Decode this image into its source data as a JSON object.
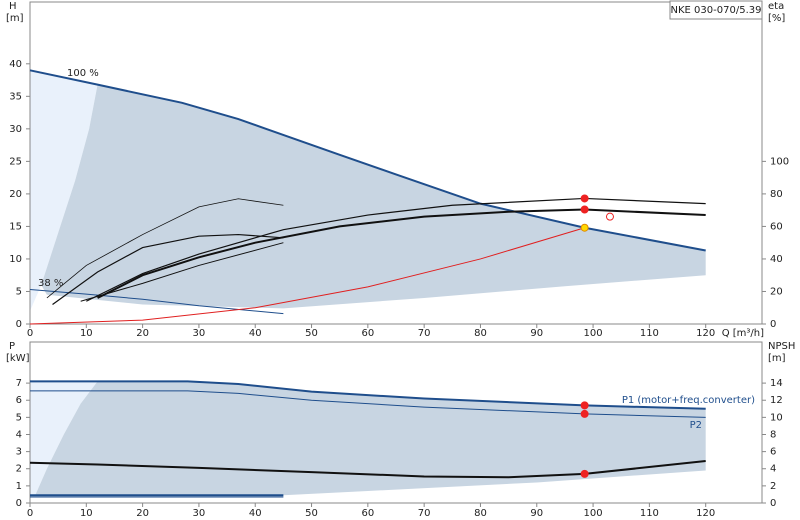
{
  "chart_data": [
    {
      "type": "line",
      "model": "NKE 030-070/5.39",
      "y_label": "H",
      "y_unit": "[m]",
      "y2_label": "eta",
      "y2_unit": "[%]",
      "x_label": "Q [m³/h]",
      "annotations": [
        "100 %",
        "38 %"
      ],
      "xlim": [
        0,
        130
      ],
      "xticks": [
        0,
        10,
        20,
        30,
        40,
        50,
        60,
        70,
        80,
        90,
        100,
        110,
        120
      ],
      "ylim": [
        0,
        49.5
      ],
      "yticks": [
        0,
        5,
        10,
        15,
        20,
        25,
        30,
        35,
        40
      ],
      "y2lim": [
        0,
        198
      ],
      "y2ticks": [
        0,
        20,
        40,
        60,
        80,
        100
      ],
      "grid": false,
      "areas": [
        {
          "color": "#e9f1fb",
          "x": [
            0,
            12,
            10.5,
            8,
            5,
            2,
            0
          ],
          "values": [
            39,
            36.8,
            30,
            22,
            14,
            6,
            2
          ]
        },
        {
          "color": "#c8d5e2",
          "x": [
            12,
            27,
            37,
            55,
            65,
            80,
            98.5,
            120,
            120,
            95,
            70,
            45,
            20,
            3,
            2,
            5,
            8,
            10.5
          ],
          "values": [
            36.8,
            34,
            31.5,
            26,
            23,
            18.5,
            14.8,
            11.3,
            7.5,
            5.8,
            4,
            2.4,
            3,
            4.5,
            6,
            14,
            22,
            30
          ]
        }
      ],
      "series": [
        {
          "color": "#1f4e8c",
          "width": 2,
          "x": [
            0,
            12,
            27,
            37,
            55,
            65,
            80,
            98.5,
            120
          ],
          "values": [
            39,
            36.8,
            34,
            31.5,
            26,
            23,
            18.5,
            14.8,
            11.3
          ]
        },
        {
          "color": "#1f4e8c",
          "width": 1,
          "x": [
            0,
            10,
            20,
            30,
            45
          ],
          "values": [
            5.3,
            4.6,
            3.8,
            2.8,
            1.6
          ]
        },
        {
          "color": "#e02020",
          "width": 1,
          "x": [
            0,
            20,
            40,
            60,
            80,
            98.5
          ],
          "values": [
            0,
            0.6,
            2.5,
            5.7,
            10,
            14.8
          ]
        },
        {
          "color": "#111111",
          "width": 0.8,
          "axis": "y2",
          "x": [
            3,
            10,
            20,
            30,
            37,
            45
          ],
          "values": [
            16,
            36,
            55,
            72,
            77,
            73
          ]
        },
        {
          "color": "#111111",
          "width": 1.2,
          "axis": "y2",
          "x": [
            4,
            12,
            20,
            30,
            37,
            45
          ],
          "values": [
            12,
            32,
            47,
            54,
            55,
            53
          ]
        },
        {
          "color": "#111111",
          "width": 1,
          "axis": "y2",
          "x": [
            9,
            20,
            30,
            45
          ],
          "values": [
            14,
            25,
            36,
            50
          ]
        },
        {
          "color": "#111111",
          "width": 2,
          "axis": "y2",
          "x": [
            12,
            20,
            30,
            40,
            55,
            70,
            85,
            98.5,
            120
          ],
          "values": [
            16,
            30,
            41,
            50,
            60,
            66,
            69,
            70.4,
            67
          ]
        },
        {
          "color": "#111111",
          "width": 1.2,
          "axis": "y2",
          "x": [
            10,
            20,
            30,
            45,
            60,
            75,
            98.5,
            120
          ],
          "values": [
            14,
            31,
            43,
            58,
            67,
            73,
            77.2,
            74
          ]
        }
      ],
      "points": [
        {
          "x": 98.5,
          "value": 77.2,
          "axis": "y2",
          "color": "#ee2222"
        },
        {
          "x": 98.5,
          "value": 70.4,
          "axis": "y2",
          "color": "#ee2222"
        },
        {
          "x": 98.5,
          "value": 14.8,
          "color": "#ffd800"
        },
        {
          "x": 103,
          "value": 66,
          "axis": "y2",
          "color": "#ee2222",
          "hollow": true
        }
      ]
    },
    {
      "type": "line",
      "y_label": "P",
      "y_unit": "[kW]",
      "y2_label": "NPSH",
      "y2_unit": "[m]",
      "xlim": [
        0,
        130
      ],
      "xticks": [
        0,
        10,
        20,
        30,
        40,
        50,
        60,
        70,
        80,
        90,
        100,
        110,
        120
      ],
      "ylim": [
        0,
        9.4
      ],
      "yticks": [
        0,
        1,
        2,
        3,
        4,
        5,
        6,
        7
      ],
      "y2lim": [
        0,
        18.8
      ],
      "y2ticks": [
        0,
        2,
        4,
        6,
        8,
        10,
        12,
        14
      ],
      "grid": false,
      "areas": [
        {
          "color": "#e9f1fb",
          "x": [
            0,
            12,
            9,
            6,
            3,
            1,
            0
          ],
          "values": [
            7.1,
            7.1,
            5.8,
            4,
            2,
            0.5,
            0.5
          ]
        },
        {
          "color": "#c8d5e2",
          "x": [
            12,
            28,
            37,
            50,
            70,
            98.5,
            120,
            120,
            90,
            60,
            45,
            12,
            1,
            3,
            6,
            9
          ],
          "values": [
            7.1,
            7.1,
            6.95,
            6.5,
            6.1,
            5.7,
            5.5,
            1.9,
            1.2,
            0.7,
            0.45,
            0.45,
            0.5,
            2,
            4,
            5.8
          ]
        }
      ],
      "series": [
        {
          "name": "P1 (motor+freq.converter)",
          "color": "#1f4e8c",
          "width": 2,
          "x": [
            0,
            12,
            28,
            37,
            50,
            70,
            98.5,
            120
          ],
          "values": [
            7.1,
            7.1,
            7.1,
            6.95,
            6.5,
            6.1,
            5.7,
            5.5
          ]
        },
        {
          "name": "P2",
          "color": "#1f4e8c",
          "width": 1,
          "x": [
            0,
            12,
            28,
            37,
            50,
            70,
            98.5,
            120
          ],
          "values": [
            6.55,
            6.55,
            6.55,
            6.4,
            6,
            5.6,
            5.2,
            5
          ]
        },
        {
          "color": "#111111",
          "width": 2,
          "axis": "y2",
          "x": [
            0,
            12,
            30,
            50,
            70,
            85,
            98.5,
            120
          ],
          "values": [
            4.7,
            4.5,
            4.1,
            3.6,
            3.1,
            3.0,
            3.4,
            4.9
          ]
        },
        {
          "color": "#1f4e8c",
          "width": 2,
          "x": [
            0,
            45
          ],
          "values": [
            0.45,
            0.45
          ]
        },
        {
          "color": "#1f4e8c",
          "width": 1,
          "x": [
            0,
            45
          ],
          "values": [
            0.35,
            0.35
          ]
        }
      ],
      "points": [
        {
          "x": 98.5,
          "value": 5.7,
          "color": "#ee2222"
        },
        {
          "x": 98.5,
          "value": 5.2,
          "color": "#ee2222"
        },
        {
          "x": 98.5,
          "value": 3.4,
          "axis": "y2",
          "color": "#ee2222"
        }
      ]
    }
  ]
}
